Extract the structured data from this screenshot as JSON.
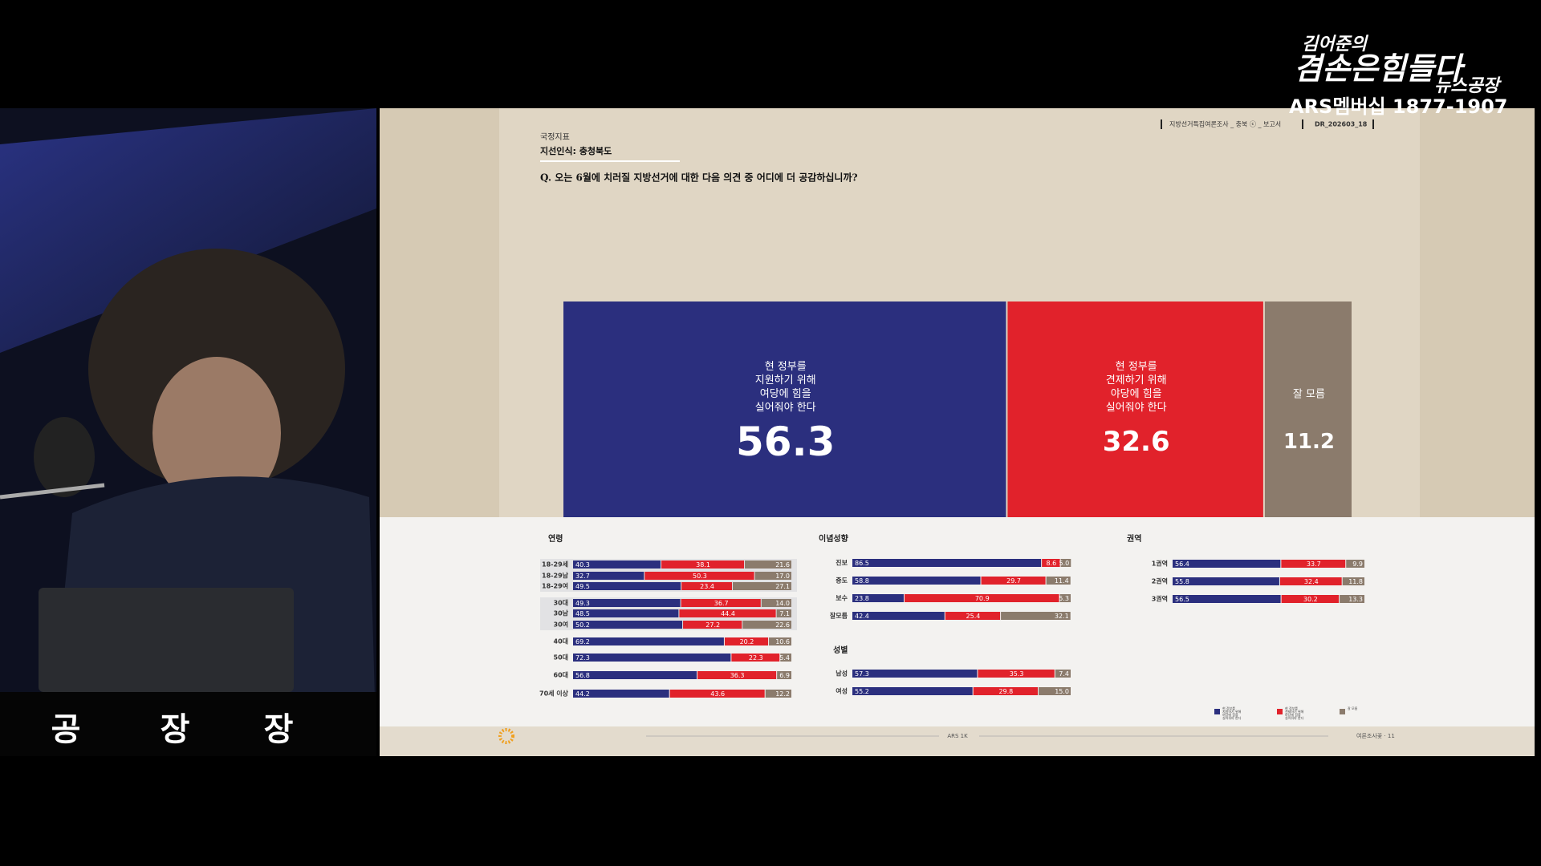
{
  "broadcast": {
    "logo": {
      "line1": "김어준의",
      "line2": "겸손은힘들다",
      "line3": "뉴스공장",
      "line4": "ARS멤버십 1877-1907"
    },
    "desk_text": [
      "공",
      "장",
      "장"
    ]
  },
  "slide": {
    "section": "국정지표",
    "subtitle": "지선인식: 충청북도",
    "meta": "지방선거특집여론조사 _ 충북 ⓒ _ 보고서",
    "doc_id": "DR_202603_18",
    "question": "Q. 오는 6월에 치러질 지방선거에 대한 다음 의견 중 어디에 더 공감하십니까?",
    "footer_center": "ARS 1K",
    "footer_right": "여론조사꽃 · 11"
  },
  "chart_data": [
    {
      "type": "stacked-bar",
      "xlim": [
        0,
        100
      ],
      "series": [
        {
          "name": "현 정부를\n지원하기 위해\n여당에 힘을\n실어줘야 한다",
          "color": "#2b2f7e",
          "values": [
            56.3
          ]
        },
        {
          "name": "현 정부를\n견제하기 위해\n야당에 힘을\n실어줘야 한다",
          "color": "#e1222b",
          "values": [
            32.6
          ]
        },
        {
          "name": "잘 모름",
          "color": "#8b7b6c",
          "values": [
            11.2
          ]
        }
      ]
    },
    {
      "type": "stacked-bar",
      "title": "연령",
      "xlim": [
        0,
        100
      ],
      "categories": [
        "18-29세",
        "18-29남",
        "18-29여",
        "30대",
        "30남",
        "30여",
        "40대",
        "50대",
        "60대",
        "70세 이상"
      ],
      "series": [
        {
          "color": "#2b2f7e",
          "values": [
            40.3,
            32.7,
            49.5,
            49.3,
            48.5,
            50.2,
            69.2,
            72.3,
            56.8,
            44.2
          ]
        },
        {
          "color": "#e1222b",
          "values": [
            38.1,
            50.3,
            23.4,
            36.7,
            44.4,
            27.2,
            20.2,
            22.3,
            36.3,
            43.6
          ]
        },
        {
          "color": "#8b7b6c",
          "values": [
            21.6,
            17.0,
            27.1,
            14.0,
            7.1,
            22.6,
            10.6,
            5.4,
            6.9,
            12.2
          ],
          "value_labels": [
            "21.6",
            "17.0",
            "27.1",
            "14.0",
            "7.1",
            "22.6",
            "10.6",
            "5.4",
            "6.9",
            "12.2"
          ]
        }
      ]
    },
    {
      "type": "stacked-bar",
      "title": "이념성향",
      "xlim": [
        0,
        100
      ],
      "categories": [
        "진보",
        "중도",
        "보수",
        "잘모름"
      ],
      "series": [
        {
          "color": "#2b2f7e",
          "values": [
            86.5,
            58.8,
            23.8,
            42.4
          ]
        },
        {
          "color": "#e1222b",
          "values": [
            8.6,
            29.7,
            70.9,
            25.4
          ]
        },
        {
          "color": "#8b7b6c",
          "values": [
            5.0,
            11.4,
            5.3,
            32.1
          ],
          "value_labels": [
            "5.0",
            "11.4",
            "5.3",
            "32.1"
          ]
        }
      ]
    },
    {
      "type": "stacked-bar",
      "title": "성별",
      "xlim": [
        0,
        100
      ],
      "categories": [
        "남성",
        "여성"
      ],
      "series": [
        {
          "color": "#2b2f7e",
          "values": [
            57.3,
            55.2
          ]
        },
        {
          "color": "#e1222b",
          "values": [
            35.3,
            29.8
          ]
        },
        {
          "color": "#8b7b6c",
          "values": [
            7.4,
            15.0
          ],
          "value_labels": [
            "7.4",
            "15.0"
          ]
        }
      ]
    },
    {
      "type": "stacked-bar",
      "title": "권역",
      "xlim": [
        0,
        100
      ],
      "categories": [
        "1권역",
        "2권역",
        "3권역"
      ],
      "series": [
        {
          "color": "#2b2f7e",
          "values": [
            56.4,
            55.8,
            56.5
          ]
        },
        {
          "color": "#e1222b",
          "values": [
            33.7,
            32.4,
            30.2
          ]
        },
        {
          "color": "#8b7b6c",
          "values": [
            9.9,
            11.8,
            13.3
          ]
        }
      ]
    }
  ]
}
